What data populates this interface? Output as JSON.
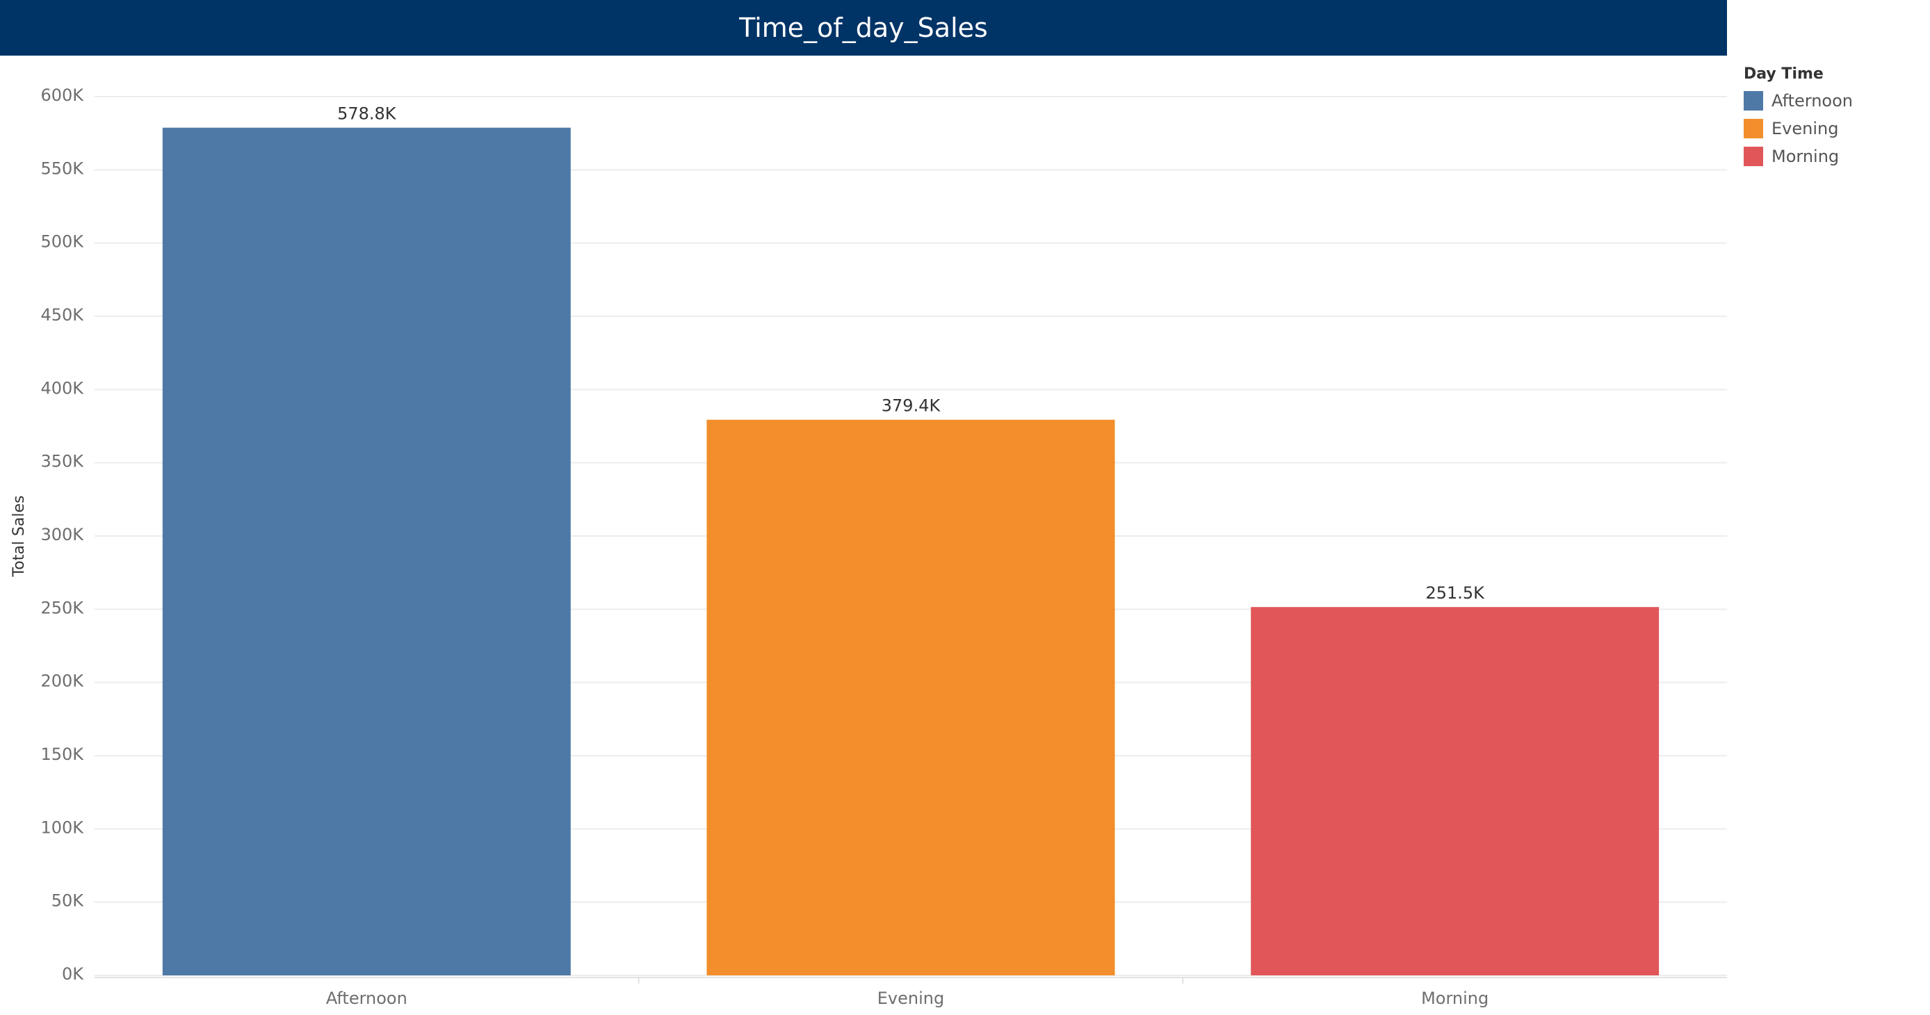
{
  "chart_data": {
    "type": "bar",
    "title": "Time_of_day_Sales",
    "xlabel": "",
    "ylabel": "Total Sales",
    "categories": [
      "Afternoon",
      "Evening",
      "Morning"
    ],
    "values": [
      578800,
      379400,
      251500
    ],
    "value_labels": [
      "578.8K",
      "379.4K",
      "251.5K"
    ],
    "colors": [
      "#4e79a7",
      "#f28e2b",
      "#e15759"
    ],
    "ylim": [
      0,
      600000
    ],
    "yticks": [
      {
        "value": 0,
        "label": "0K"
      },
      {
        "value": 50000,
        "label": "50K"
      },
      {
        "value": 100000,
        "label": "100K"
      },
      {
        "value": 150000,
        "label": "150K"
      },
      {
        "value": 200000,
        "label": "200K"
      },
      {
        "value": 250000,
        "label": "250K"
      },
      {
        "value": 300000,
        "label": "300K"
      },
      {
        "value": 350000,
        "label": "350K"
      },
      {
        "value": 400000,
        "label": "400K"
      },
      {
        "value": 450000,
        "label": "450K"
      },
      {
        "value": 500000,
        "label": "500K"
      },
      {
        "value": 550000,
        "label": "550K"
      },
      {
        "value": 600000,
        "label": "600K"
      }
    ],
    "grid": true,
    "legend": {
      "title": "Day Time",
      "placement": "right",
      "entries": [
        "Afternoon",
        "Evening",
        "Morning"
      ]
    }
  }
}
